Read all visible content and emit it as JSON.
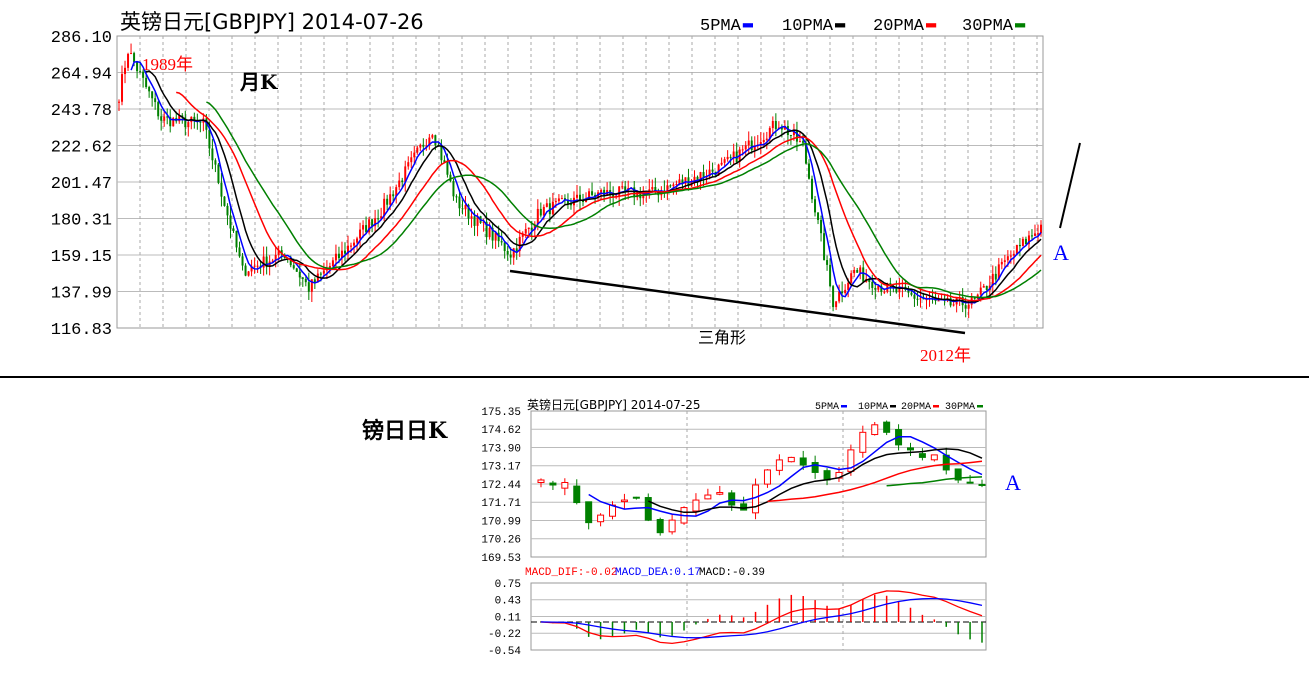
{
  "colors": {
    "up": "#ff0000",
    "down": "#008000",
    "ma5": "#0000ff",
    "ma10": "#000000",
    "ma20": "#ff0000",
    "ma30": "#008000",
    "annot_blue": "#0000ff",
    "annot_red": "#ff0000"
  },
  "annotations": {
    "year_start": "1989年",
    "monthly_label": "月K",
    "triangle": "三角形",
    "year_end": "2012年",
    "point_a": "A",
    "daily_label": "镑日日K",
    "point_a2": "A"
  },
  "chart_data": [
    {
      "type": "candlestick",
      "title": "英镑日元[GBPJPY] 2014-07-26",
      "period": "monthly",
      "legend": [
        "5PMA",
        "10PMA",
        "20PMA",
        "30PMA"
      ],
      "legend_placement": "top-right",
      "yticks": [
        "286.10",
        "264.94",
        "243.78",
        "222.62",
        "201.47",
        "180.31",
        "159.15",
        "137.99",
        "116.83"
      ],
      "ylim": [
        116.83,
        286.1
      ],
      "months": 307,
      "close_keypoints": [
        [
          0,
          252
        ],
        [
          3,
          278
        ],
        [
          14,
          238
        ],
        [
          28,
          235
        ],
        [
          41,
          150
        ],
        [
          55,
          160
        ],
        [
          63,
          140
        ],
        [
          74,
          160
        ],
        [
          87,
          185
        ],
        [
          104,
          232
        ],
        [
          112,
          190
        ],
        [
          130,
          160
        ],
        [
          140,
          185
        ],
        [
          160,
          195
        ],
        [
          177,
          195
        ],
        [
          200,
          210
        ],
        [
          219,
          236
        ],
        [
          227,
          222
        ],
        [
          237,
          132
        ],
        [
          244,
          150
        ],
        [
          254,
          140
        ],
        [
          274,
          130
        ],
        [
          284,
          132
        ],
        [
          294,
          155
        ],
        [
          306,
          176
        ]
      ]
    },
    {
      "type": "candlestick",
      "title": "英镑日元[GBPJPY] 2014-07-25",
      "period": "daily",
      "legend": [
        "5PMA",
        "10PMA",
        "20PMA",
        "30PMA"
      ],
      "legend_placement": "top-right",
      "yticks": [
        "175.35",
        "174.62",
        "173.90",
        "173.17",
        "172.44",
        "171.71",
        "170.99",
        "170.26",
        "169.53"
      ],
      "ylim": [
        169.53,
        175.35
      ],
      "closes": [
        172.6,
        172.4,
        172.5,
        171.7,
        170.9,
        171.2,
        171.6,
        171.8,
        171.9,
        171.0,
        170.5,
        171.0,
        171.5,
        171.8,
        172.0,
        172.1,
        171.6,
        171.4,
        172.4,
        173.0,
        173.4,
        173.5,
        173.2,
        172.9,
        172.6,
        172.9,
        173.8,
        174.5,
        174.8,
        174.5,
        174.0,
        173.8,
        173.5,
        173.6,
        173.0,
        172.6,
        172.5,
        172.4
      ],
      "macd": {
        "label_dif": "MACD_DIF:-0.02",
        "label_dea": "MACD_DEA:0.17",
        "label_macd": "MACD:-0.39",
        "yticks": [
          "0.75",
          "0.43",
          "0.11",
          "-0.22",
          "-0.54"
        ],
        "ylim": [
          -0.54,
          0.75
        ]
      }
    }
  ]
}
